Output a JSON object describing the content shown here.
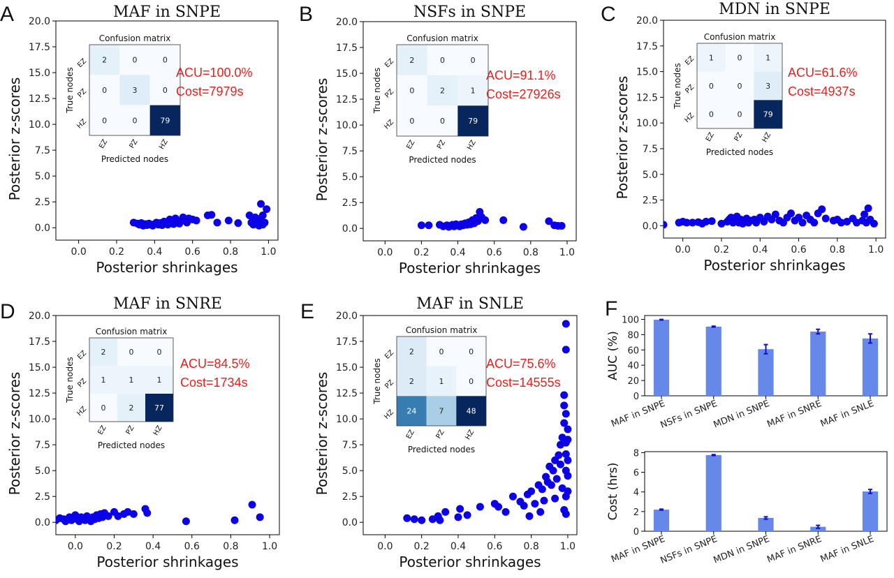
{
  "chart_data": [
    {
      "id": "A",
      "type": "scatter",
      "panel": "A",
      "title": "MAF in SNPE",
      "xlabel": "Posterior shrinkages",
      "ylabel": "Posterior z-scores",
      "xlim": [
        -0.12,
        1.05
      ],
      "ylim": [
        -1.2,
        20
      ],
      "xticks": [
        "0.0",
        "0.2",
        "0.4",
        "0.6",
        "0.8",
        "1.0"
      ],
      "yticks": [
        "0.0",
        "2.5",
        "5.0",
        "7.5",
        "10.0",
        "12.5",
        "15.0",
        "17.5",
        "20.0"
      ],
      "marker_color": "#0b00e8",
      "points": [
        [
          0.29,
          0.5
        ],
        [
          0.31,
          0.4
        ],
        [
          0.32,
          0.3
        ],
        [
          0.33,
          0.45
        ],
        [
          0.34,
          0.2
        ],
        [
          0.35,
          0.35
        ],
        [
          0.36,
          0.25
        ],
        [
          0.37,
          0.4
        ],
        [
          0.38,
          0.3
        ],
        [
          0.39,
          0.2
        ],
        [
          0.4,
          0.35
        ],
        [
          0.41,
          0.5
        ],
        [
          0.42,
          0.3
        ],
        [
          0.43,
          0.45
        ],
        [
          0.44,
          0.25
        ],
        [
          0.45,
          0.6
        ],
        [
          0.46,
          0.5
        ],
        [
          0.47,
          0.3
        ],
        [
          0.48,
          0.8
        ],
        [
          0.49,
          0.55
        ],
        [
          0.5,
          0.35
        ],
        [
          0.51,
          0.9
        ],
        [
          0.52,
          0.6
        ],
        [
          0.53,
          0.4
        ],
        [
          0.55,
          1.0
        ],
        [
          0.56,
          0.7
        ],
        [
          0.57,
          0.5
        ],
        [
          0.58,
          0.9
        ],
        [
          0.6,
          0.8
        ],
        [
          0.62,
          0.7
        ],
        [
          0.68,
          1.2
        ],
        [
          0.7,
          1.25
        ],
        [
          0.73,
          0.5
        ],
        [
          0.79,
          0.7
        ],
        [
          0.84,
          0.45
        ],
        [
          0.9,
          1.2
        ],
        [
          0.91,
          0.5
        ],
        [
          0.92,
          0.3
        ],
        [
          0.93,
          1.0
        ],
        [
          0.94,
          0.6
        ],
        [
          0.95,
          0.2
        ],
        [
          0.96,
          2.3
        ],
        [
          0.97,
          1.2
        ],
        [
          0.98,
          0.5
        ],
        [
          0.99,
          1.8
        ],
        [
          0.96,
          0.9
        ],
        [
          0.97,
          0.3
        ]
      ],
      "inset": {
        "title": "Confusion matrix",
        "xlabel": "Predicted nodes",
        "ylabel": "True nodes",
        "labels": [
          "EZ",
          "PZ",
          "HZ"
        ],
        "matrix": [
          [
            2,
            0,
            0
          ],
          [
            0,
            3,
            0
          ],
          [
            0,
            0,
            79
          ]
        ],
        "acu": "ACU=100.0%",
        "cost": "Cost=7979s"
      }
    },
    {
      "id": "B",
      "type": "scatter",
      "panel": "B",
      "title": "NSFs in SNPE",
      "xlabel": "Posterior shrinkages",
      "ylabel": "Posterior z-scores",
      "xlim": [
        -0.12,
        1.05
      ],
      "ylim": [
        -1.2,
        20
      ],
      "xticks": [
        "0.0",
        "0.2",
        "0.4",
        "0.6",
        "0.8",
        "1.0"
      ],
      "yticks": [
        "0.0",
        "2.5",
        "5.0",
        "7.5",
        "10.0",
        "12.5",
        "15.0",
        "17.5",
        "20.0"
      ],
      "marker_color": "#0b00e8",
      "points": [
        [
          0.2,
          0.3
        ],
        [
          0.24,
          0.3
        ],
        [
          0.3,
          0.35
        ],
        [
          0.32,
          0.2
        ],
        [
          0.34,
          0.3
        ],
        [
          0.35,
          0.15
        ],
        [
          0.36,
          0.25
        ],
        [
          0.37,
          0.35
        ],
        [
          0.38,
          0.2
        ],
        [
          0.39,
          0.4
        ],
        [
          0.4,
          0.3
        ],
        [
          0.41,
          0.2
        ],
        [
          0.42,
          0.4
        ],
        [
          0.43,
          0.3
        ],
        [
          0.44,
          0.5
        ],
        [
          0.45,
          0.35
        ],
        [
          0.46,
          0.6
        ],
        [
          0.47,
          0.4
        ],
        [
          0.48,
          0.8
        ],
        [
          0.49,
          0.5
        ],
        [
          0.5,
          1.0
        ],
        [
          0.51,
          0.7
        ],
        [
          0.52,
          1.6
        ],
        [
          0.53,
          1.1
        ],
        [
          0.55,
          0.8
        ],
        [
          0.65,
          0.8
        ],
        [
          0.76,
          0.15
        ],
        [
          0.9,
          0.7
        ],
        [
          0.93,
          0.3
        ],
        [
          0.95,
          0.25
        ],
        [
          0.97,
          0.25
        ]
      ],
      "inset": {
        "title": "Confusion matrix",
        "xlabel": "Predicted nodes",
        "ylabel": "True nodes",
        "labels": [
          "EZ",
          "PZ",
          "HZ"
        ],
        "matrix": [
          [
            2,
            0,
            0
          ],
          [
            0,
            2,
            1
          ],
          [
            0,
            0,
            79
          ]
        ],
        "acu": "ACU=91.1%",
        "cost": "Cost=27926s"
      }
    },
    {
      "id": "C",
      "type": "scatter",
      "panel": "C",
      "title": "MDN in SNPE",
      "xlabel": "Posterior shrinkages",
      "ylabel": "Posterior z-scores",
      "xlim": [
        -0.1,
        1.05
      ],
      "ylim": [
        -1.2,
        20
      ],
      "xticks": [
        "0.0",
        "0.2",
        "0.4",
        "0.6",
        "0.8",
        "1.0"
      ],
      "yticks": [
        "0.0",
        "2.5",
        "5.0",
        "7.5",
        "10.0",
        "12.5",
        "15.0",
        "17.5",
        "20.0"
      ],
      "marker_color": "#0b00e8",
      "points": [
        [
          -0.1,
          0.1
        ],
        [
          -0.02,
          0.3
        ],
        [
          0.0,
          0.4
        ],
        [
          0.02,
          0.3
        ],
        [
          0.05,
          0.3
        ],
        [
          0.08,
          0.35
        ],
        [
          0.1,
          0.2
        ],
        [
          0.12,
          0.4
        ],
        [
          0.15,
          0.45
        ],
        [
          0.2,
          0.2
        ],
        [
          0.23,
          0.4
        ],
        [
          0.24,
          0.6
        ],
        [
          0.25,
          0.8
        ],
        [
          0.26,
          0.3
        ],
        [
          0.27,
          0.5
        ],
        [
          0.28,
          0.9
        ],
        [
          0.29,
          0.3
        ],
        [
          0.3,
          0.6
        ],
        [
          0.31,
          0.2
        ],
        [
          0.32,
          0.4
        ],
        [
          0.33,
          0.7
        ],
        [
          0.34,
          0.3
        ],
        [
          0.35,
          0.5
        ],
        [
          0.37,
          0.6
        ],
        [
          0.38,
          0.3
        ],
        [
          0.4,
          0.8
        ],
        [
          0.42,
          0.4
        ],
        [
          0.44,
          0.9
        ],
        [
          0.46,
          0.6
        ],
        [
          0.48,
          1.1
        ],
        [
          0.5,
          0.5
        ],
        [
          0.52,
          0.3
        ],
        [
          0.54,
          0.8
        ],
        [
          0.56,
          1.2
        ],
        [
          0.58,
          0.5
        ],
        [
          0.6,
          0.8
        ],
        [
          0.62,
          0.3
        ],
        [
          0.64,
          1.0
        ],
        [
          0.66,
          0.6
        ],
        [
          0.68,
          0.3
        ],
        [
          0.7,
          1.2
        ],
        [
          0.72,
          1.6
        ],
        [
          0.74,
          0.7
        ],
        [
          0.78,
          0.5
        ],
        [
          0.8,
          0.6
        ],
        [
          0.82,
          0.3
        ],
        [
          0.85,
          0.4
        ],
        [
          0.88,
          0.7
        ],
        [
          0.9,
          0.3
        ],
        [
          0.93,
          0.5
        ],
        [
          0.94,
          1.1
        ],
        [
          0.95,
          0.3
        ],
        [
          0.96,
          1.7
        ],
        [
          0.97,
          0.6
        ],
        [
          0.99,
          0.2
        ]
      ],
      "inset": {
        "title": "Confusion matrix",
        "xlabel": "Predicted nodes",
        "ylabel": "True nodes",
        "labels": [
          "EZ",
          "PZ",
          "HZ"
        ],
        "matrix": [
          [
            1,
            0,
            1
          ],
          [
            0,
            0,
            3
          ],
          [
            0,
            0,
            79
          ]
        ],
        "acu": "ACU=61.6%",
        "cost": "Cost=4937s"
      }
    },
    {
      "id": "D",
      "type": "scatter",
      "panel": "D",
      "title": "MAF in SNRE",
      "xlabel": "Posterior shrinkages",
      "ylabel": "Posterior z-scores",
      "xlim": [
        -0.1,
        1.05
      ],
      "ylim": [
        -1.2,
        20
      ],
      "xticks": [
        "0.0",
        "0.2",
        "0.4",
        "0.6",
        "0.8",
        "1.0"
      ],
      "yticks": [
        "0.0",
        "2.5",
        "5.0",
        "7.5",
        "10.0",
        "12.5",
        "15.0",
        "17.5",
        "20.0"
      ],
      "marker_color": "#0b00e8",
      "points": [
        [
          -0.1,
          0.2
        ],
        [
          -0.08,
          0.4
        ],
        [
          -0.06,
          0.3
        ],
        [
          -0.05,
          0.1
        ],
        [
          -0.04,
          0.3
        ],
        [
          -0.03,
          0.5
        ],
        [
          -0.02,
          0.2
        ],
        [
          -0.01,
          0.4
        ],
        [
          0.0,
          0.7
        ],
        [
          0.01,
          0.3
        ],
        [
          0.02,
          0.1
        ],
        [
          0.03,
          0.5
        ],
        [
          0.04,
          0.3
        ],
        [
          0.05,
          0.2
        ],
        [
          0.06,
          0.6
        ],
        [
          0.07,
          0.4
        ],
        [
          0.08,
          0.1
        ],
        [
          0.09,
          0.5
        ],
        [
          0.1,
          0.3
        ],
        [
          0.11,
          0.7
        ],
        [
          0.12,
          0.4
        ],
        [
          0.13,
          0.8
        ],
        [
          0.14,
          0.5
        ],
        [
          0.15,
          0.9
        ],
        [
          0.17,
          0.6
        ],
        [
          0.2,
          1.0
        ],
        [
          0.22,
          0.6
        ],
        [
          0.25,
          0.8
        ],
        [
          0.27,
          1.0
        ],
        [
          0.3,
          0.8
        ],
        [
          0.36,
          1.3
        ],
        [
          0.37,
          0.9
        ],
        [
          0.57,
          0.1
        ],
        [
          0.82,
          0.2
        ],
        [
          0.91,
          1.7
        ],
        [
          0.95,
          0.5
        ]
      ],
      "inset": {
        "title": "Confusion matrix",
        "xlabel": "Predicted nodes",
        "ylabel": "True nodes",
        "labels": [
          "EZ",
          "PZ",
          "HZ"
        ],
        "matrix": [
          [
            2,
            0,
            0
          ],
          [
            1,
            1,
            1
          ],
          [
            0,
            2,
            77
          ]
        ],
        "acu": "ACU=84.5%",
        "cost": "Cost=1734s"
      }
    },
    {
      "id": "E",
      "type": "scatter",
      "panel": "E",
      "title": "MAF in SNLE",
      "xlabel": "Posterior shrinkages",
      "ylabel": "Posterior z-scores",
      "xlim": [
        -0.12,
        1.05
      ],
      "ylim": [
        -1.2,
        20
      ],
      "xticks": [
        "0.0",
        "0.2",
        "0.4",
        "0.6",
        "0.8",
        "1.0"
      ],
      "yticks": [
        "0.0",
        "2.5",
        "5.0",
        "7.5",
        "10.0",
        "12.5",
        "15.0",
        "17.5",
        "20.0"
      ],
      "marker_color": "#0b00e8",
      "points": [
        [
          0.12,
          0.4
        ],
        [
          0.16,
          0.3
        ],
        [
          0.2,
          0.2
        ],
        [
          0.26,
          0.3
        ],
        [
          0.29,
          0.6
        ],
        [
          0.3,
          0.2
        ],
        [
          0.33,
          1.0
        ],
        [
          0.4,
          0.5
        ],
        [
          0.41,
          1.3
        ],
        [
          0.45,
          0.7
        ],
        [
          0.52,
          1.5
        ],
        [
          0.6,
          1.8
        ],
        [
          0.62,
          1.5
        ],
        [
          0.66,
          1.0
        ],
        [
          0.7,
          2.5
        ],
        [
          0.74,
          2.0
        ],
        [
          0.76,
          1.6
        ],
        [
          0.78,
          2.7
        ],
        [
          0.79,
          0.6
        ],
        [
          0.8,
          3.0
        ],
        [
          0.82,
          1.8
        ],
        [
          0.84,
          3.6
        ],
        [
          0.85,
          1.0
        ],
        [
          0.86,
          3.2
        ],
        [
          0.87,
          2.1
        ],
        [
          0.88,
          4.4
        ],
        [
          0.89,
          3.9
        ],
        [
          0.9,
          5.4
        ],
        [
          0.91,
          3.6
        ],
        [
          0.92,
          5.0
        ],
        [
          0.93,
          6.0
        ],
        [
          0.93,
          2.3
        ],
        [
          0.94,
          4.2
        ],
        [
          0.95,
          6.5
        ],
        [
          0.96,
          7.5
        ],
        [
          0.96,
          5.6
        ],
        [
          0.97,
          8.2
        ],
        [
          0.97,
          3.3
        ],
        [
          0.98,
          9.6
        ],
        [
          0.98,
          12.3
        ],
        [
          0.98,
          11.3
        ],
        [
          0.98,
          1.2
        ],
        [
          0.99,
          10.5
        ],
        [
          0.99,
          7.7
        ],
        [
          0.99,
          6.6
        ],
        [
          0.99,
          5.0
        ],
        [
          0.99,
          2.5
        ],
        [
          0.99,
          0.8
        ],
        [
          1.0,
          9.0
        ],
        [
          1.0,
          8.0
        ],
        [
          1.0,
          6.0
        ],
        [
          1.0,
          4.5
        ],
        [
          1.0,
          3.0
        ],
        [
          0.99,
          19.2
        ],
        [
          0.99,
          16.7
        ]
      ],
      "inset": {
        "title": "Confusion matrix",
        "xlabel": "Predicted nodes",
        "ylabel": "True nodes",
        "labels": [
          "EZ",
          "PZ",
          "HZ"
        ],
        "matrix": [
          [
            2,
            0,
            0
          ],
          [
            2,
            1,
            0
          ],
          [
            24,
            7,
            48
          ]
        ],
        "acu": "ACU=75.6%",
        "cost": "Cost=14555s"
      }
    },
    {
      "id": "F1",
      "type": "bar",
      "panel": "F",
      "ylabel": "AUC (%)",
      "categories": [
        "MAF in SNPE",
        "NSFs in SNPE",
        "MDN in SNPE",
        "MAF in SNRE",
        "MAF in SNLE"
      ],
      "values": [
        99.5,
        90.5,
        61,
        84,
        75
      ],
      "errors": [
        0.4,
        0.6,
        6,
        3,
        6
      ],
      "ylim": [
        0,
        105
      ],
      "yticks": [
        "0",
        "20",
        "40",
        "60",
        "80",
        "100"
      ],
      "bar_color": "#6688e8",
      "error_color": "#1010c8"
    },
    {
      "id": "F2",
      "type": "bar",
      "panel": "F",
      "ylabel": "Cost (hrs)",
      "categories": [
        "MAF in SNPE",
        "NSFs in SNPE",
        "MDN in SNPE",
        "MAF in SNRE",
        "MAF in SNLE"
      ],
      "values": [
        2.2,
        7.75,
        1.35,
        0.45,
        4.05
      ],
      "errors": [
        0.05,
        0.05,
        0.12,
        0.15,
        0.2
      ],
      "ylim": [
        0,
        8.1
      ],
      "yticks": [
        "0",
        "2",
        "4",
        "6",
        "8"
      ],
      "bar_color": "#6688e8",
      "error_color": "#1010c8"
    }
  ]
}
